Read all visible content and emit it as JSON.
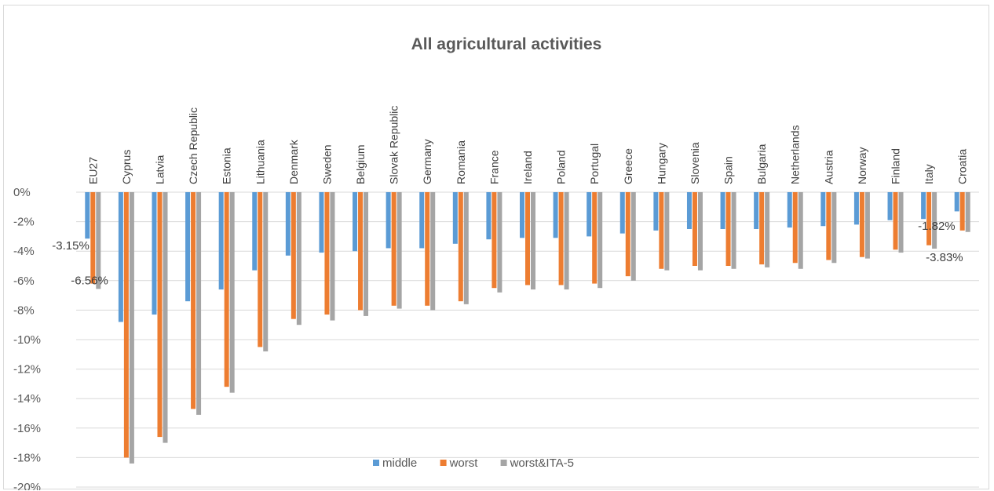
{
  "chart_data": {
    "type": "bar",
    "title": "All agricultural activities",
    "xlabel": "",
    "ylabel": "",
    "ylim": [
      -20,
      0
    ],
    "yticks": [
      0,
      -2,
      -4,
      -6,
      -8,
      -10,
      -12,
      -14,
      -16,
      -18,
      -20
    ],
    "ytick_labels": [
      "0%",
      "-2%",
      "-4%",
      "-6%",
      "-8%",
      "-10%",
      "-12%",
      "-14%",
      "-16%",
      "-18%",
      "-20%"
    ],
    "x_axis_position": "top",
    "grid": true,
    "legend_position": "bottom-center",
    "categories": [
      "EU27",
      "Cyprus",
      "Latvia",
      "Czech Republic",
      "Estonia",
      "Lithuania",
      "Denmark",
      "Sweden",
      "Belgium",
      "Slovak Republic",
      "Germany",
      "Romania",
      "France",
      "Ireland",
      "Poland",
      "Portugal",
      "Greece",
      "Hungary",
      "Slovenia",
      "Spain",
      "Bulgaria",
      "Netherlands",
      "Austria",
      "Norway",
      "Finland",
      "Italy",
      "Croatia"
    ],
    "series": [
      {
        "name": "middle",
        "color": "#5b9bd5",
        "values": [
          -3.15,
          -8.8,
          -8.3,
          -7.4,
          -6.6,
          -5.3,
          -4.3,
          -4.1,
          -4.0,
          -3.8,
          -3.8,
          -3.5,
          -3.2,
          -3.1,
          -3.1,
          -3.0,
          -2.8,
          -2.6,
          -2.5,
          -2.5,
          -2.5,
          -2.4,
          -2.3,
          -2.2,
          -1.9,
          -1.82,
          -1.3
        ]
      },
      {
        "name": "worst",
        "color": "#ed7d31",
        "values": [
          -6.2,
          -18.0,
          -16.6,
          -14.7,
          -13.2,
          -10.5,
          -8.6,
          -8.3,
          -8.0,
          -7.7,
          -7.7,
          -7.4,
          -6.5,
          -6.3,
          -6.3,
          -6.2,
          -5.7,
          -5.2,
          -5.0,
          -5.0,
          -4.9,
          -4.8,
          -4.6,
          -4.4,
          -3.9,
          -3.6,
          -2.6
        ]
      },
      {
        "name": "worst&ITA-5",
        "color": "#a5a5a5",
        "values": [
          -6.56,
          -18.4,
          -17.0,
          -15.1,
          -13.6,
          -10.8,
          -9.0,
          -8.7,
          -8.4,
          -7.9,
          -8.0,
          -7.6,
          -6.8,
          -6.6,
          -6.6,
          -6.5,
          -6.0,
          -5.3,
          -5.3,
          -5.2,
          -5.1,
          -5.2,
          -4.8,
          -4.5,
          -4.1,
          -3.83,
          -2.7
        ]
      }
    ],
    "data_labels": [
      {
        "text": "-3.15%",
        "series": 0,
        "category": 0
      },
      {
        "text": "-6.56%",
        "series": 2,
        "category": 0
      },
      {
        "text": "-1.82%",
        "series": 0,
        "category": 25
      },
      {
        "text": "-3.83%",
        "series": 2,
        "category": 25
      }
    ]
  }
}
